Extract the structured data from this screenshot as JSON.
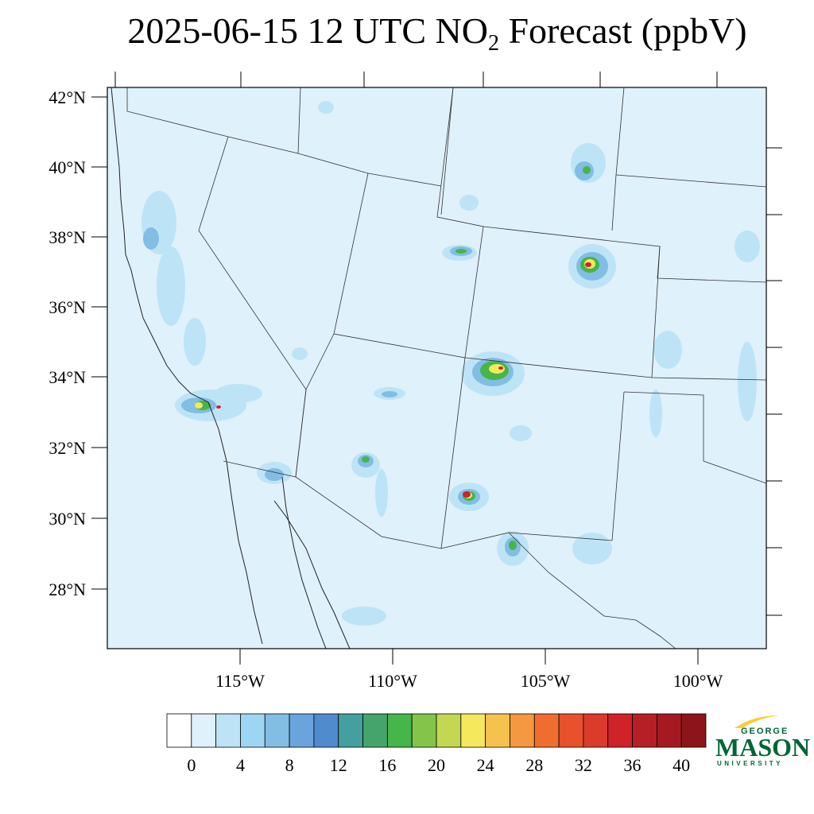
{
  "title": {
    "prefix": "2025-06-15 12 UTC NO",
    "subscript": "2",
    "suffix": " Forecast (ppbV)"
  },
  "map": {
    "lat_labels": [
      "42°N",
      "40°N",
      "38°N",
      "36°N",
      "34°N",
      "32°N",
      "30°N",
      "28°N"
    ],
    "lon_labels": [
      "115°W",
      "110°W",
      "105°W",
      "100°W"
    ],
    "ocean_fill": "#dff1fb",
    "land_fill": "#dff1fb"
  },
  "colorbar": {
    "levels": [
      0,
      4,
      8,
      12,
      16,
      20,
      24,
      28,
      32,
      36,
      40
    ],
    "labels": [
      "0",
      "4",
      "8",
      "12",
      "16",
      "20",
      "24",
      "28",
      "32",
      "36",
      "40"
    ],
    "colors": [
      "#ffffff",
      "#dff1fb",
      "#bde4f6",
      "#9dd6f3",
      "#82bde4",
      "#6aa4dc",
      "#4f8bcd",
      "#469f9f",
      "#44a46b",
      "#46b54a",
      "#84c44a",
      "#c3d752",
      "#f6e85c",
      "#f6c24e",
      "#f5983f",
      "#f06d30",
      "#e8512c",
      "#dc3a2a",
      "#cf2229",
      "#b81e25",
      "#a51a22",
      "#8d1519"
    ]
  },
  "logo": {
    "line1": "GEORGE",
    "line2": "MASON",
    "line3": "UNIVERSITY",
    "color": "#006633",
    "accent": "#ffcc33"
  }
}
